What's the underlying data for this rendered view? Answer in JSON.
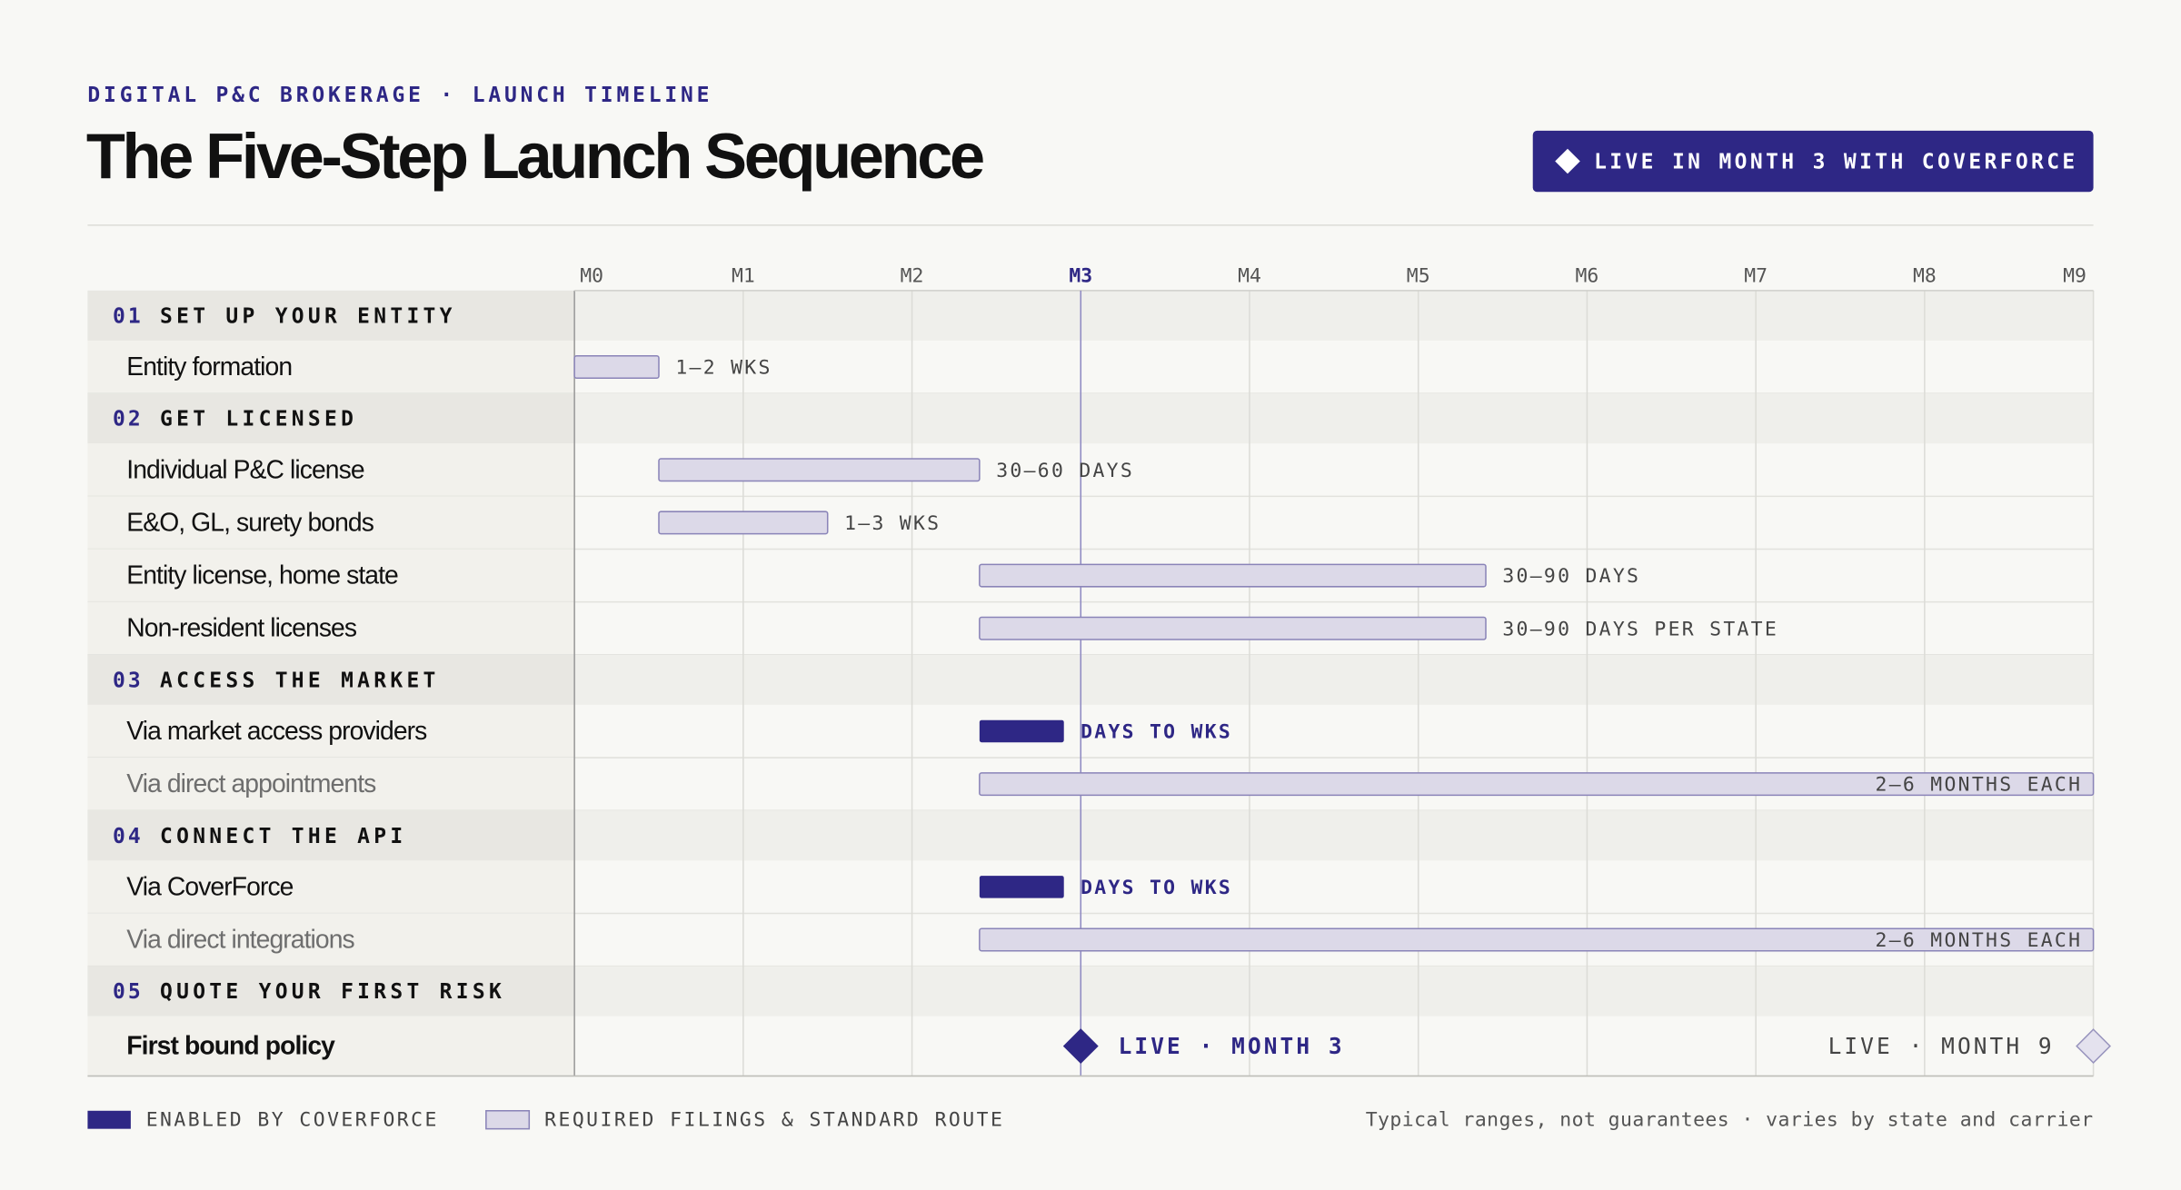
{
  "chart_data": {
    "type": "gantt",
    "kicker": "DIGITAL P&C BROKERAGE · LAUNCH TIMELINE",
    "title": "The Five-Step Launch Sequence",
    "badge": "LIVE IN MONTH 3 WITH COVERFORCE",
    "xlim": [
      0,
      9
    ],
    "xticks": [
      {
        "value": 0,
        "label": "M0"
      },
      {
        "value": 1,
        "label": "M1"
      },
      {
        "value": 2,
        "label": "M2"
      },
      {
        "value": 3,
        "label": "M3"
      },
      {
        "value": 4,
        "label": "M4"
      },
      {
        "value": 5,
        "label": "M5"
      },
      {
        "value": 6,
        "label": "M6"
      },
      {
        "value": 7,
        "label": "M7"
      },
      {
        "value": 8,
        "label": "M8"
      },
      {
        "value": 9,
        "label": "M9"
      }
    ],
    "marker": 3,
    "grid": true,
    "colors": {
      "coverforce": "#2e2785",
      "standard": "#dcd9e8"
    },
    "sections": [
      {
        "number": "01",
        "title": "SET UP YOUR ENTITY",
        "tasks": [
          {
            "label": "Entity formation",
            "start": 0,
            "end": 0.5,
            "duration": "1–2 WKS",
            "kind": "standard"
          }
        ]
      },
      {
        "number": "02",
        "title": "GET LICENSED",
        "tasks": [
          {
            "label": "Individual P&C license",
            "start": 0.5,
            "end": 2.4,
            "duration": "30–60 DAYS",
            "kind": "standard"
          },
          {
            "label": "E&O, GL, surety bonds",
            "start": 0.5,
            "end": 1.5,
            "duration": "1–3 WKS",
            "kind": "standard"
          },
          {
            "label": "Entity license, home state",
            "start": 2.4,
            "end": 5.4,
            "duration": "30–90 DAYS",
            "kind": "standard"
          },
          {
            "label": "Non-resident licenses",
            "start": 2.4,
            "end": 5.4,
            "duration": "30–90 DAYS PER STATE",
            "kind": "standard"
          }
        ]
      },
      {
        "number": "03",
        "title": "ACCESS THE MARKET",
        "tasks": [
          {
            "label": "Via market access providers",
            "start": 2.4,
            "end": 2.9,
            "duration": "DAYS TO WKS",
            "kind": "coverforce"
          },
          {
            "label": "Via direct appointments",
            "start": 2.4,
            "end": 9,
            "duration": "2–6 MONTHS EACH",
            "kind": "standard",
            "muted": true
          }
        ]
      },
      {
        "number": "04",
        "title": "CONNECT THE API",
        "tasks": [
          {
            "label": "Via CoverForce",
            "start": 2.4,
            "end": 2.9,
            "duration": "DAYS TO WKS",
            "kind": "coverforce"
          },
          {
            "label": "Via direct integrations",
            "start": 2.4,
            "end": 9,
            "duration": "2–6 MONTHS EACH",
            "kind": "standard",
            "muted": true
          }
        ]
      },
      {
        "number": "05",
        "title": "QUOTE YOUR FIRST RISK",
        "tasks": [
          {
            "label": "First bound policy",
            "milestones": [
              {
                "x": 3,
                "label": "LIVE · MONTH 3",
                "filled": true
              },
              {
                "x": 9,
                "label": "LIVE · MONTH 9",
                "filled": false
              }
            ]
          }
        ]
      }
    ],
    "legend": [
      {
        "kind": "coverforce",
        "label": "ENABLED BY COVERFORCE"
      },
      {
        "kind": "standard",
        "label": "REQUIRED FILINGS & STANDARD ROUTE"
      }
    ],
    "footnote": "Typical ranges, not guarantees · varies by state and carrier"
  }
}
